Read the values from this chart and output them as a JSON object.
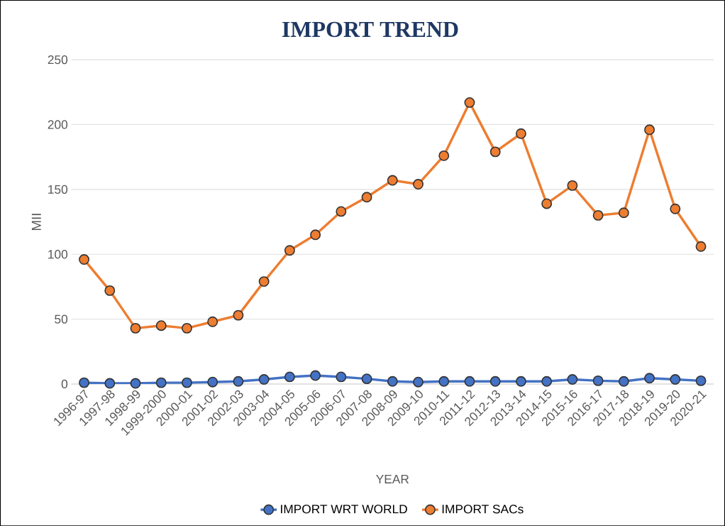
{
  "chart_data": {
    "type": "line",
    "title": "IMPORT TREND",
    "xlabel": "YEAR",
    "ylabel": "MII",
    "categories": [
      "1996-97",
      "1997-98",
      "1998-99",
      "1999-2000",
      "2000-01",
      "2001-02",
      "2002-03",
      "2003-04",
      "2004-05",
      "2005-06",
      "2006-07",
      "2007-08",
      "2008-09",
      "2009-10",
      "2010-11",
      "2011-12",
      "2012-13",
      "2013-14",
      "2014-15",
      "2015-16",
      "2016-17",
      "2017-18",
      "2018-19",
      "2019-20",
      "2020-21"
    ],
    "series": [
      {
        "name": "IMPORT WRT WORLD",
        "color": "#4472c4",
        "values": [
          1,
          0.5,
          0.5,
          1,
          1,
          1.5,
          2,
          3.5,
          5.5,
          6.5,
          5.5,
          4,
          2,
          1.5,
          2,
          2,
          2,
          2,
          2,
          3.5,
          2.5,
          2,
          4.5,
          3.5,
          2.5
        ]
      },
      {
        "name": "IMPORT SACs",
        "color": "#ed7d31",
        "values": [
          96,
          72,
          43,
          45,
          43,
          48,
          53,
          79,
          103,
          115,
          133,
          144,
          157,
          154,
          176,
          217,
          179,
          193,
          139,
          153,
          130,
          132,
          196,
          135,
          106
        ]
      }
    ],
    "ylim": [
      0,
      250
    ],
    "yticks": [
      0,
      50,
      100,
      150,
      200,
      250
    ],
    "grid": "y",
    "legend": "bottom",
    "marker": "circle",
    "line_style": "solid"
  }
}
